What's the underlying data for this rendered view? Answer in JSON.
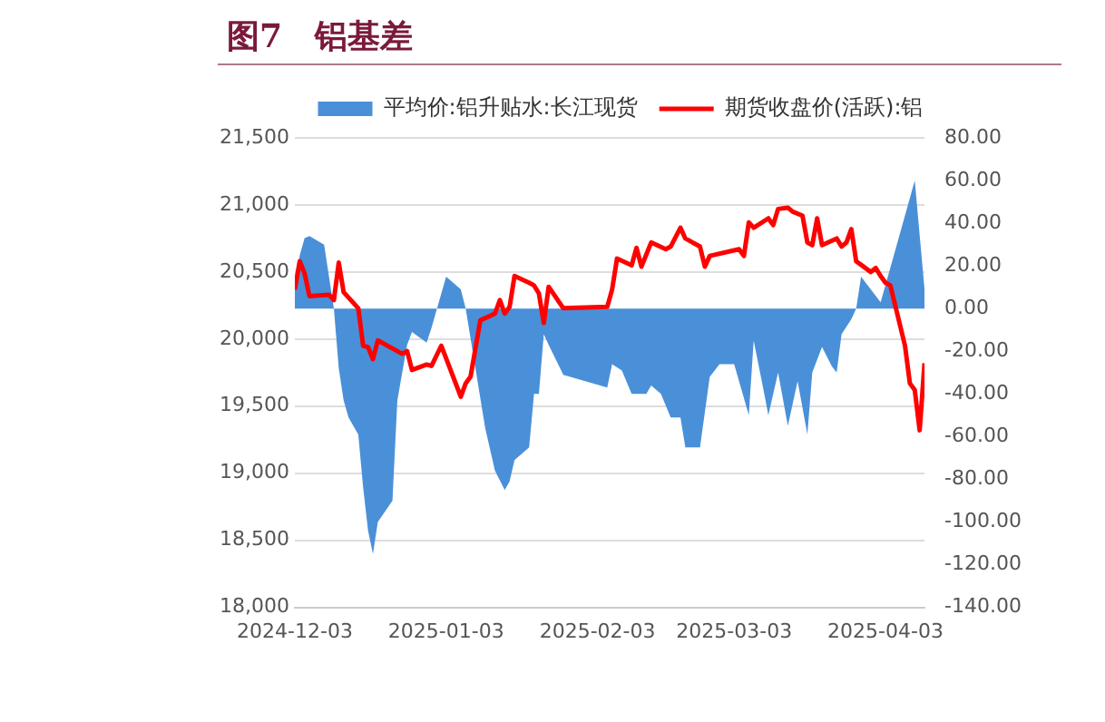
{
  "chart_data": {
    "type": "line",
    "title": "图7　铝基差",
    "series": [
      {
        "name": "平均价:铝升贴水:长江现货",
        "type": "area",
        "axis": "y2",
        "color": "#4a90d9",
        "x": [
          "2024-12-03",
          "2024-12-04",
          "2024-12-05",
          "2024-12-06",
          "2024-12-09",
          "2024-12-10",
          "2024-12-11",
          "2024-12-12",
          "2024-12-13",
          "2024-12-14",
          "2024-12-16",
          "2024-12-17",
          "2024-12-18",
          "2024-12-19",
          "2024-12-20",
          "2024-12-23",
          "2024-12-24",
          "2024-12-26",
          "2024-12-27",
          "2024-12-30",
          "2024-12-31",
          "2025-01-02",
          "2025-01-03",
          "2025-01-06",
          "2025-01-07",
          "2025-01-09",
          "2025-01-11",
          "2025-01-13",
          "2025-01-15",
          "2025-01-16",
          "2025-01-17",
          "2025-01-20",
          "2025-01-21",
          "2025-01-22",
          "2025-01-23",
          "2025-01-24",
          "2025-01-27",
          "2025-02-05",
          "2025-02-06",
          "2025-02-08",
          "2025-02-10",
          "2025-02-13",
          "2025-02-14",
          "2025-02-16",
          "2025-02-18",
          "2025-02-20",
          "2025-02-21",
          "2025-02-24",
          "2025-02-26",
          "2025-02-28",
          "2025-03-03",
          "2025-03-06",
          "2025-03-07",
          "2025-03-09",
          "2025-03-10",
          "2025-03-12",
          "2025-03-14",
          "2025-03-16",
          "2025-03-18",
          "2025-03-19",
          "2025-03-21",
          "2025-03-23",
          "2025-03-24",
          "2025-03-25",
          "2025-03-27",
          "2025-03-28",
          "2025-03-29",
          "2025-04-02",
          "2025-04-03",
          "2025-04-09",
          "2025-04-11"
        ],
        "values": [
          10,
          25,
          33,
          34,
          30,
          15,
          0,
          -28,
          -43,
          -51,
          -59,
          -84,
          -104,
          -115,
          -100,
          -90,
          -43,
          -17,
          -11,
          -16,
          -9,
          7,
          15,
          9,
          0,
          -28,
          -56,
          -76,
          -85,
          -81,
          -71,
          -65,
          -40,
          -40,
          -12,
          -17,
          -31,
          -37,
          -26,
          -29,
          -40,
          -40,
          -36,
          -40,
          -51,
          -51,
          -65,
          -65,
          -32,
          -26,
          -26,
          -50,
          -15,
          -38,
          -50,
          -30,
          -55,
          -34,
          -59,
          -30,
          -18,
          -27,
          -30,
          -12,
          -5,
          0,
          15,
          3,
          11,
          60,
          9
        ]
      },
      {
        "name": "期货收盘价(活跃):铝",
        "type": "line",
        "axis": "y",
        "color": "#ff0000",
        "x": [
          "2024-12-03",
          "2024-12-04",
          "2024-12-05",
          "2024-12-06",
          "2024-12-10",
          "2024-12-11",
          "2024-12-12",
          "2024-12-13",
          "2024-12-16",
          "2024-12-17",
          "2024-12-18",
          "2024-12-19",
          "2024-12-20",
          "2024-12-24",
          "2024-12-25",
          "2024-12-26",
          "2024-12-27",
          "2024-12-30",
          "2024-12-31",
          "2025-01-02",
          "2025-01-06",
          "2025-01-07",
          "2025-01-08",
          "2025-01-10",
          "2025-01-13",
          "2025-01-14",
          "2025-01-15",
          "2025-01-16",
          "2025-01-17",
          "2025-01-20",
          "2025-01-21",
          "2025-01-22",
          "2025-01-23",
          "2025-01-24",
          "2025-01-27",
          "2025-02-05",
          "2025-02-06",
          "2025-02-07",
          "2025-02-10",
          "2025-02-11",
          "2025-02-12",
          "2025-02-14",
          "2025-02-17",
          "2025-02-18",
          "2025-02-20",
          "2025-02-21",
          "2025-02-24",
          "2025-02-25",
          "2025-02-26",
          "2025-03-04",
          "2025-03-05",
          "2025-03-06",
          "2025-03-07",
          "2025-03-10",
          "2025-03-11",
          "2025-03-12",
          "2025-03-14",
          "2025-03-15",
          "2025-03-17",
          "2025-03-18",
          "2025-03-19",
          "2025-03-20",
          "2025-03-21",
          "2025-03-24",
          "2025-03-25",
          "2025-03-26",
          "2025-03-27",
          "2025-03-28",
          "2025-03-31",
          "2025-04-01",
          "2025-04-02",
          "2025-04-03",
          "2025-04-04",
          "2025-04-07",
          "2025-04-08",
          "2025-04-09",
          "2025-04-10",
          "2025-04-11"
        ],
        "values": [
          20370,
          20580,
          20490,
          20320,
          20330,
          20290,
          20570,
          20350,
          20230,
          19950,
          19940,
          19850,
          19990,
          19910,
          19890,
          19910,
          19770,
          19810,
          19800,
          19950,
          19570,
          19670,
          19720,
          20140,
          20190,
          20290,
          20190,
          20240,
          20470,
          20420,
          20400,
          20340,
          20120,
          20390,
          20230,
          20240,
          20370,
          20600,
          20550,
          20680,
          20540,
          20720,
          20670,
          20690,
          20830,
          20750,
          20690,
          20540,
          20620,
          20670,
          20620,
          20870,
          20830,
          20900,
          20850,
          20970,
          20980,
          20950,
          20920,
          20720,
          20700,
          20900,
          20700,
          20750,
          20690,
          20720,
          20820,
          20580,
          20500,
          20530,
          20470,
          20420,
          20400,
          19950,
          19670,
          19620,
          19320,
          19820
        ]
      }
    ],
    "xlim": [
      "2024-12-03",
      "2025-04-11"
    ],
    "xticks": [
      "2024-12-03",
      "2025-01-03",
      "2025-02-03",
      "2025-03-03",
      "2025-04-03"
    ],
    "ylim": [
      18000,
      21500
    ],
    "yticks": [
      {
        "value": 18000,
        "label": "18,000"
      },
      {
        "value": 18500,
        "label": "18,500"
      },
      {
        "value": 19000,
        "label": "19,000"
      },
      {
        "value": 19500,
        "label": "19,500"
      },
      {
        "value": 20000,
        "label": "20,000"
      },
      {
        "value": 20500,
        "label": "20,500"
      },
      {
        "value": 21000,
        "label": "21,000"
      },
      {
        "value": 21500,
        "label": "21,500"
      }
    ],
    "y2lim": [
      -140,
      80
    ],
    "y2ticks": [
      {
        "value": -140,
        "label": "-140.00"
      },
      {
        "value": -120,
        "label": "-120.00"
      },
      {
        "value": -100,
        "label": "-100.00"
      },
      {
        "value": -80,
        "label": "-80.00"
      },
      {
        "value": -60,
        "label": "-60.00"
      },
      {
        "value": -40,
        "label": "-40.00"
      },
      {
        "value": -20,
        "label": "-20.00"
      },
      {
        "value": 0,
        "label": "0.00"
      },
      {
        "value": 20,
        "label": "20.00"
      },
      {
        "value": 40,
        "label": "40.00"
      },
      {
        "value": 60,
        "label": "60.00"
      },
      {
        "value": 80,
        "label": "80.00"
      }
    ],
    "grid": "y",
    "legend": "top",
    "marker": "none",
    "line_style": "solid"
  }
}
